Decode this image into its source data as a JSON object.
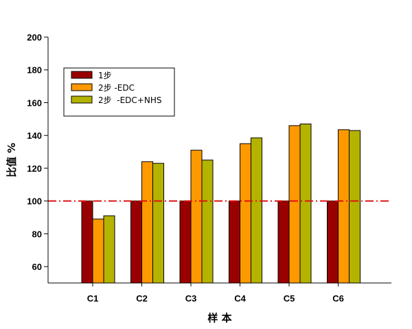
{
  "chart_data": {
    "type": "bar",
    "title": "",
    "xlabel": "样 本",
    "ylabel": "比值 %",
    "categories": [
      "C1",
      "C2",
      "C3",
      "C4",
      "C5",
      "C6"
    ],
    "ylim": [
      50,
      200
    ],
    "yticks": [
      60,
      80,
      100,
      120,
      140,
      160,
      180,
      200
    ],
    "series": [
      {
        "name": "1步",
        "color": "#990000",
        "values": [
          100,
          100,
          100,
          100,
          100,
          100
        ]
      },
      {
        "name": "2步 -EDC",
        "color": "#ff9900",
        "values": [
          89,
          124,
          131,
          135,
          146,
          143.5
        ]
      },
      {
        "name": "2步  -EDC+NHS",
        "color": "#b3b300",
        "values": [
          91,
          123,
          125,
          138.5,
          147,
          143
        ]
      }
    ],
    "reference_line": {
      "value": 100,
      "color": "#dd1111",
      "style": "dash-dot"
    },
    "legend_position": "top-left",
    "grid": false
  }
}
